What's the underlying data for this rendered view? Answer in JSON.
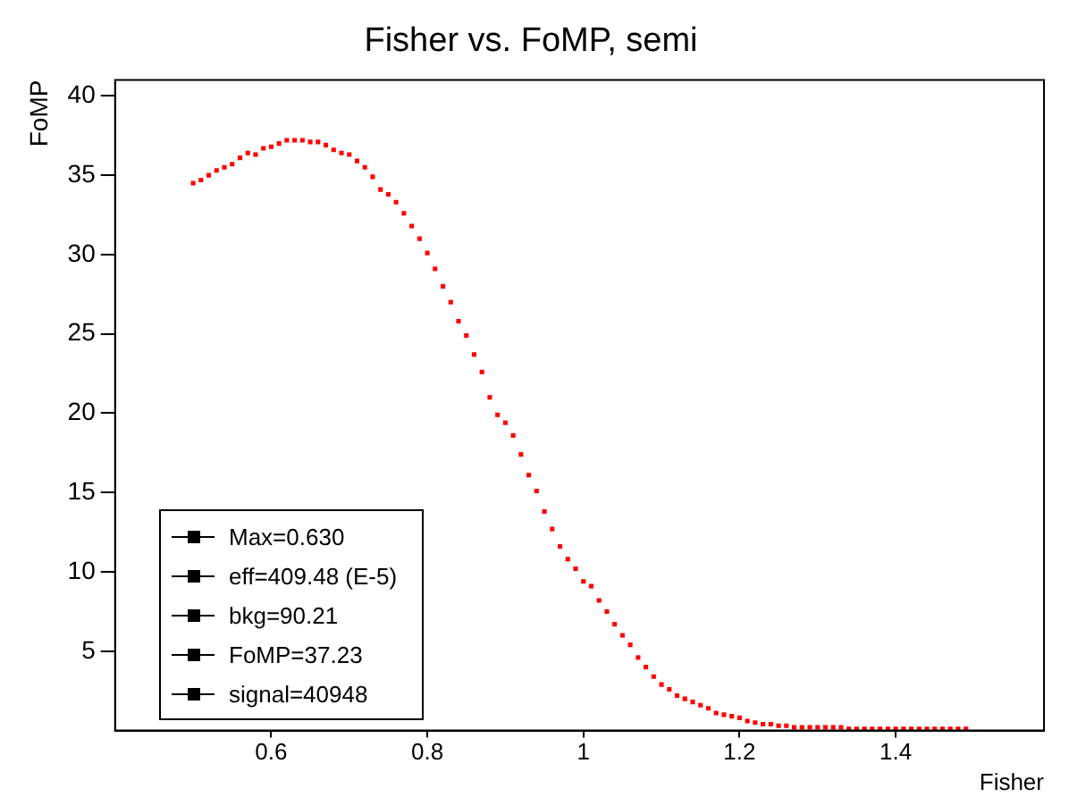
{
  "chart_data": {
    "type": "scatter",
    "title": "Fisher vs. FoMP, semi",
    "xlabel": "Fisher",
    "ylabel": "FoMP",
    "x": [
      0.5,
      0.51,
      0.52,
      0.53,
      0.54,
      0.55,
      0.56,
      0.57,
      0.58,
      0.59,
      0.6,
      0.61,
      0.62,
      0.63,
      0.64,
      0.65,
      0.66,
      0.67,
      0.68,
      0.69,
      0.7,
      0.71,
      0.72,
      0.73,
      0.74,
      0.75,
      0.76,
      0.77,
      0.78,
      0.79,
      0.8,
      0.81,
      0.82,
      0.83,
      0.84,
      0.85,
      0.86,
      0.87,
      0.88,
      0.89,
      0.9,
      0.91,
      0.92,
      0.93,
      0.94,
      0.95,
      0.96,
      0.97,
      0.98,
      0.99,
      1.0,
      1.01,
      1.02,
      1.03,
      1.04,
      1.05,
      1.06,
      1.07,
      1.08,
      1.09,
      1.1,
      1.11,
      1.12,
      1.13,
      1.14,
      1.15,
      1.16,
      1.17,
      1.18,
      1.19,
      1.2,
      1.21,
      1.22,
      1.23,
      1.24,
      1.25,
      1.26,
      1.27,
      1.28,
      1.29,
      1.3,
      1.31,
      1.32,
      1.33,
      1.34,
      1.35,
      1.36,
      1.37,
      1.38,
      1.39,
      1.4,
      1.41,
      1.42,
      1.43,
      1.44,
      1.45,
      1.46,
      1.47,
      1.48,
      1.49
    ],
    "series": [
      {
        "color": "#ff0000",
        "values": [
          34.5,
          34.7,
          35.0,
          35.3,
          35.5,
          35.7,
          36.1,
          36.4,
          36.3,
          36.7,
          36.8,
          37.0,
          37.2,
          37.2,
          37.2,
          37.1,
          37.1,
          36.9,
          36.6,
          36.4,
          36.3,
          35.9,
          35.5,
          34.9,
          34.1,
          33.8,
          33.3,
          32.6,
          31.8,
          31.0,
          30.1,
          29.1,
          28.0,
          27.0,
          25.8,
          24.9,
          23.7,
          22.6,
          21.0,
          19.9,
          19.4,
          18.6,
          17.4,
          16.1,
          15.1,
          13.8,
          12.7,
          11.6,
          10.8,
          10.2,
          9.4,
          9.1,
          8.2,
          7.5,
          6.7,
          6.0,
          5.4,
          4.6,
          4.0,
          3.4,
          2.9,
          2.6,
          2.2,
          2.0,
          1.8,
          1.6,
          1.4,
          1.1,
          1.0,
          0.9,
          0.8,
          0.6,
          0.5,
          0.4,
          0.4,
          0.3,
          0.3,
          0.2,
          0.2,
          0.2,
          0.2,
          0.2,
          0.2,
          0.2,
          0.1,
          0.1,
          0.1,
          0.1,
          0.1,
          0.1,
          0.1,
          0.1,
          0.1,
          0.1,
          0.1,
          0.1,
          0.1,
          0.1,
          0.1,
          0.1
        ]
      }
    ],
    "xlim": [
      0.4,
      1.59
    ],
    "xticks": [
      0.6,
      0.8,
      1,
      1.2,
      1.4
    ],
    "ylim": [
      0,
      41
    ],
    "yticks": [
      5,
      10,
      15,
      20,
      25,
      30,
      35,
      40
    ],
    "marker": "square",
    "grid": false,
    "legend": false,
    "annotations": [
      "Max=0.630",
      "eff=409.48 (E-5)",
      "bkg=90.21",
      "FoMP=37.23",
      "signal=40948"
    ]
  }
}
